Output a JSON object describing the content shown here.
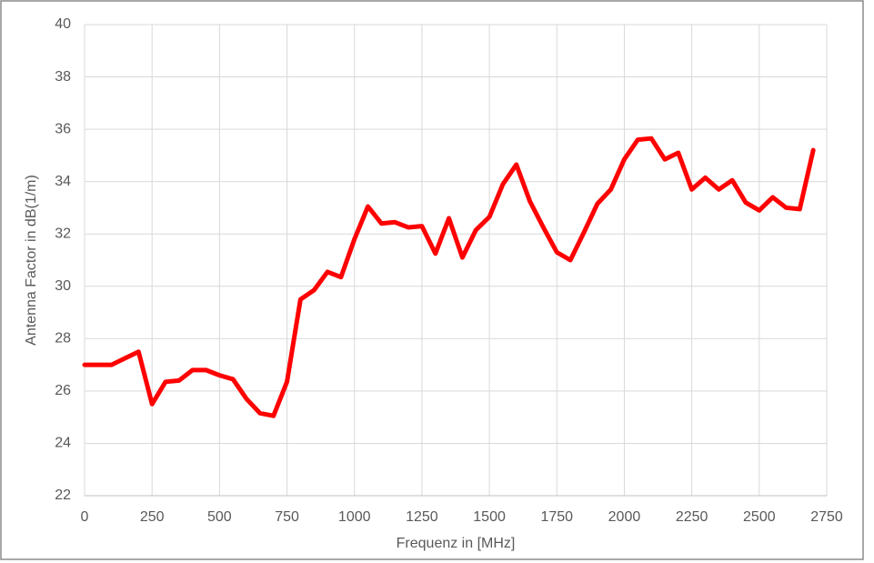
{
  "chart_data": {
    "type": "line",
    "x_label": "Frequenz in [MHz]",
    "y_label": "Antenna Factor in dB(1/m)",
    "x": [
      0,
      50,
      100,
      150,
      200,
      250,
      300,
      350,
      400,
      450,
      500,
      550,
      600,
      650,
      700,
      750,
      800,
      850,
      900,
      950,
      1000,
      1050,
      1100,
      1150,
      1200,
      1250,
      1300,
      1350,
      1400,
      1450,
      1500,
      1550,
      1600,
      1650,
      1700,
      1750,
      1800,
      1850,
      1900,
      1950,
      2000,
      2050,
      2100,
      2150,
      2200,
      2250,
      2300,
      2350,
      2400,
      2450,
      2500,
      2550,
      2600,
      2650,
      2700
    ],
    "series": [
      {
        "color": "#ff0000",
        "values": [
          27.0,
          27.0,
          27.0,
          27.25,
          27.5,
          25.5,
          26.35,
          26.4,
          26.8,
          26.8,
          26.6,
          26.45,
          25.7,
          25.15,
          25.05,
          26.35,
          29.5,
          29.85,
          30.55,
          30.35,
          31.8,
          33.05,
          32.4,
          32.45,
          32.25,
          32.3,
          31.25,
          32.6,
          31.1,
          32.15,
          32.65,
          33.9,
          34.65,
          33.25,
          32.25,
          31.3,
          31.0,
          32.05,
          33.15,
          33.7,
          34.85,
          35.6,
          35.65,
          34.85,
          35.1,
          33.7,
          34.15,
          33.7,
          34.05,
          33.2,
          32.9,
          33.4,
          33.0,
          32.95,
          35.2
        ]
      }
    ],
    "xlim": [
      0,
      2750
    ],
    "xticks": [
      0,
      250,
      500,
      750,
      1000,
      1250,
      1500,
      1750,
      2000,
      2250,
      2500,
      2750
    ],
    "ylim": [
      22,
      40
    ],
    "yticks": [
      22,
      24,
      26,
      28,
      30,
      32,
      34,
      36,
      38,
      40
    ],
    "grid": true
  }
}
